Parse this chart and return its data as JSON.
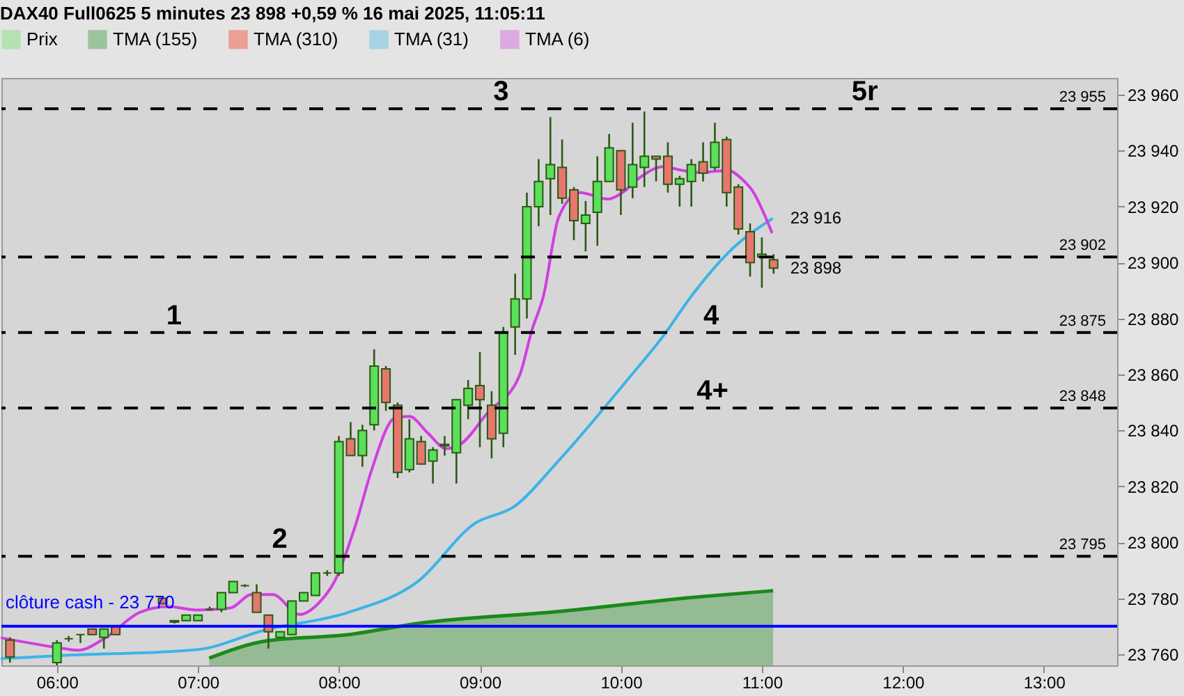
{
  "chart_data": {
    "type": "candlestick",
    "title": "DAX40 Full0625 5 minutes 23 898 +0,59 % 16 mai 2025, 11:05:11",
    "xlim": [
      5.606,
      13.52
    ],
    "ylim": [
      23756,
      23966
    ],
    "xticks": [
      {
        "value": 6,
        "label": "06:00"
      },
      {
        "value": 7,
        "label": "07:00"
      },
      {
        "value": 8,
        "label": "08:00"
      },
      {
        "value": 9,
        "label": "09:00"
      },
      {
        "value": 10,
        "label": "10:00"
      },
      {
        "value": 11,
        "label": "11:00"
      },
      {
        "value": 12,
        "label": "12:00"
      },
      {
        "value": 13,
        "label": "13:00"
      }
    ],
    "yticks": [
      {
        "value": 23760,
        "label": "23 760"
      },
      {
        "value": 23780,
        "label": "23 780"
      },
      {
        "value": 23800,
        "label": "23 800"
      },
      {
        "value": 23820,
        "label": "23 820"
      },
      {
        "value": 23840,
        "label": "23 840"
      },
      {
        "value": 23860,
        "label": "23 860"
      },
      {
        "value": 23880,
        "label": "23 880"
      },
      {
        "value": 23900,
        "label": "23 900"
      },
      {
        "value": 23920,
        "label": "23 920"
      },
      {
        "value": 23940,
        "label": "23 940"
      },
      {
        "value": 23960,
        "label": "23 960"
      }
    ],
    "legend": "top left",
    "series": [
      {
        "name": "Prix",
        "color": "#5ae05a",
        "x": [
          5.6667,
          6,
          6.0833,
          6.1667,
          6.25,
          6.3333,
          6.4167,
          6.75,
          6.8333,
          6.9167,
          7,
          7.0833,
          7.1667,
          7.25,
          7.3333,
          7.4167,
          7.5,
          7.5833,
          7.6667,
          7.75,
          7.8333,
          7.9167,
          8,
          8.0833,
          8.1667,
          8.25,
          8.3333,
          8.4167,
          8.5,
          8.5833,
          8.6667,
          8.75,
          8.8333,
          8.9167,
          9,
          9.0833,
          9.1667,
          9.25,
          9.3333,
          9.4167,
          9.5,
          9.5833,
          9.6667,
          9.75,
          9.8333,
          9.9167,
          10,
          10.0833,
          10.1667,
          10.25,
          10.3333,
          10.4167,
          10.5,
          10.5833,
          10.6667,
          10.75,
          10.8333,
          10.9167,
          11,
          11.0833
        ],
        "ohlc": [
          [
            23765,
            23766,
            23757,
            23759
          ],
          [
            23757,
            23765,
            23756,
            23764
          ],
          [
            23765.5,
            23766.5,
            23764.5,
            23765.5
          ],
          [
            23767,
            23767,
            23764,
            23767
          ],
          [
            23769,
            23769,
            23767,
            23767
          ],
          [
            23766,
            23769,
            23762,
            23769
          ],
          [
            23770,
            23770,
            23767,
            23767
          ],
          [
            23780,
            23780,
            23778,
            23778
          ],
          [
            23771.5,
            23772,
            23771,
            23772
          ],
          [
            23772,
            23774,
            23772,
            23774
          ],
          [
            23772,
            23774,
            23772,
            23774
          ],
          [
            23776,
            23777,
            23776,
            23776
          ],
          [
            23776,
            23782,
            23775,
            23782
          ],
          [
            23782,
            23786,
            23782,
            23786
          ],
          [
            23784.5,
            23785,
            23784,
            23784.5
          ],
          [
            23782,
            23785,
            23775,
            23775
          ],
          [
            23774,
            23774,
            23762,
            23768
          ],
          [
            23766,
            23768,
            23766,
            23768
          ],
          [
            23767,
            23779,
            23767,
            23779
          ],
          [
            23779,
            23782,
            23779,
            23782
          ],
          [
            23781,
            23789,
            23781,
            23789
          ],
          [
            23789,
            23790,
            23788,
            23789
          ],
          [
            23789,
            23838,
            23788,
            23836
          ],
          [
            23837,
            23843,
            23831,
            23831
          ],
          [
            23831,
            23842,
            23827,
            23840
          ],
          [
            23842,
            23869,
            23840,
            23863
          ],
          [
            23862,
            23863,
            23847,
            23850
          ],
          [
            23849,
            23850,
            23823,
            23825
          ],
          [
            23826,
            23844,
            23825,
            23837
          ],
          [
            23836,
            23838,
            23828,
            23828
          ],
          [
            23829,
            23834,
            23821,
            23833
          ],
          [
            23834.5,
            23838,
            23831,
            23835
          ],
          [
            23832,
            23851,
            23821,
            23851
          ],
          [
            23849,
            23858,
            23844,
            23855
          ],
          [
            23856,
            23868,
            23834,
            23851
          ],
          [
            23849,
            23854,
            23830,
            23837
          ],
          [
            23839,
            23877,
            23834,
            23875
          ],
          [
            23877,
            23896,
            23867,
            23887
          ],
          [
            23887,
            23925,
            23880,
            23920
          ],
          [
            23920,
            23937,
            23913,
            23929
          ],
          [
            23930,
            23952,
            23917,
            23935
          ],
          [
            23934,
            23944,
            23921,
            23923
          ],
          [
            23926,
            23927,
            23908,
            23915
          ],
          [
            23914,
            23922,
            23904,
            23917
          ],
          [
            23918,
            23938,
            23906,
            23929
          ],
          [
            23929,
            23946,
            23929,
            23941
          ],
          [
            23940,
            23940,
            23917,
            23926
          ],
          [
            23927,
            23950,
            23923,
            23935
          ],
          [
            23934,
            23954,
            23927,
            23938
          ],
          [
            23938,
            23938,
            23929,
            23937
          ],
          [
            23938,
            23943,
            23925,
            23928
          ],
          [
            23928,
            23931,
            23920,
            23930
          ],
          [
            23929,
            23937,
            23920,
            23935
          ],
          [
            23936,
            23943,
            23929,
            23932
          ],
          [
            23934,
            23950,
            23933,
            23943
          ],
          [
            23944,
            23945,
            23920,
            23925
          ],
          [
            23927,
            23928,
            23910,
            23912
          ],
          [
            23911,
            23914,
            23895,
            23900
          ],
          [
            23902,
            23909,
            23891,
            23903
          ],
          [
            23901,
            23903,
            23896,
            23898
          ]
        ],
        "colors": [
          "#e8766e",
          "#5ae05a",
          "#2b5a14",
          "#2b5a14",
          "#e8766e",
          "#5ae05a",
          "#e8766e",
          "#e8766e",
          "#5ae05a",
          "#5ae05a",
          "#5ae05a",
          "#2b5a14",
          "#5ae05a",
          "#5ae05a",
          "#2b5a14",
          "#e8766e",
          "#e8766e",
          "#5ae05a",
          "#5ae05a",
          "#5ae05a",
          "#5ae05a",
          "#2b5a14",
          "#5ae05a",
          "#e8766e",
          "#5ae05a",
          "#5ae05a",
          "#e8766e",
          "#e8766e",
          "#5ae05a",
          "#e8766e",
          "#5ae05a",
          "#5ae05a",
          "#5ae05a",
          "#5ae05a",
          "#e8766e",
          "#e8766e",
          "#5ae05a",
          "#5ae05a",
          "#5ae05a",
          "#5ae05a",
          "#5ae05a",
          "#e8766e",
          "#e8766e",
          "#5ae05a",
          "#5ae05a",
          "#5ae05a",
          "#e8766e",
          "#5ae05a",
          "#5ae05a",
          "#e8766e",
          "#e8766e",
          "#5ae05a",
          "#5ae05a",
          "#e8766e",
          "#5ae05a",
          "#e8766e",
          "#e8766e",
          "#e8766e",
          "#5ae05a",
          "#e8766e"
        ]
      },
      {
        "name": "TMA (155)",
        "type": "area",
        "color": "#1a8a1a",
        "x": [
          7.08,
          7.48,
          8.07,
          8.56,
          9.55,
          10.53,
          11.08
        ],
        "values": [
          23758.6,
          23764.7,
          23767,
          23771,
          23775.2,
          23780.4,
          23782.7
        ]
      },
      {
        "name": "TMA (310)",
        "type": "line",
        "color": "#ff2000"
      },
      {
        "name": "TMA (31)",
        "type": "line",
        "color": "#3cb4e6",
        "x": [
          5.61,
          6.03,
          6.99,
          7.48,
          8.07,
          8.56,
          8.96,
          9.25,
          9.55,
          10.07,
          10.3,
          10.5,
          10.8,
          11.07
        ],
        "values": [
          23758.4,
          23759.5,
          23761.6,
          23768.7,
          23775,
          23786,
          23806.6,
          23813,
          23828.7,
          23859.5,
          23873.7,
          23888,
          23905.4,
          23915.6
        ]
      },
      {
        "name": "TMA (6)",
        "type": "line",
        "color": "#d23ee0",
        "x": [
          5.61,
          6,
          6.15,
          6.34,
          6.59,
          6.79,
          6.99,
          7.23,
          7.38,
          7.53,
          7.72,
          7.87,
          7.97,
          8.12,
          8.23,
          8.4,
          8.5,
          8.63,
          8.76,
          8.86,
          9.05,
          9.28,
          9.37,
          9.45,
          9.56,
          9.71,
          9.91,
          10.01,
          10.14,
          10.3,
          10.43,
          10.56,
          10.76,
          10.86,
          10.93,
          11.07
        ],
        "values": [
          23765.8,
          23762.4,
          23761.4,
          23765.7,
          23775,
          23777,
          23775.8,
          23776.5,
          23781.3,
          23781.3,
          23774.2,
          23779,
          23786.1,
          23806.5,
          23825.5,
          23844.5,
          23845,
          23839.1,
          23833.5,
          23835,
          23846,
          23859.5,
          23876,
          23887.9,
          23916.4,
          23925,
          23922.7,
          23925,
          23930.6,
          23934.3,
          23933,
          23932.2,
          23933,
          23929.8,
          23925.9,
          23910.9
        ]
      }
    ],
    "ref_lines": [
      {
        "axis": "y",
        "value": 23955,
        "label": "23 955",
        "color": "#000000",
        "line_style": "dashed"
      },
      {
        "axis": "y",
        "value": 23902,
        "label": "23 902",
        "color": "#000000",
        "line_style": "dashed"
      },
      {
        "axis": "y",
        "value": 23875,
        "label": "23 875",
        "color": "#000000",
        "line_style": "dashed"
      },
      {
        "axis": "y",
        "value": 23848,
        "label": "23 848",
        "color": "#000000",
        "line_style": "dashed"
      },
      {
        "axis": "y",
        "value": 23795,
        "label": "23 795",
        "color": "#000000",
        "line_style": "dashed"
      },
      {
        "axis": "y",
        "value": 23770,
        "label": "clôture cash -  23 770",
        "color": "#0000ff",
        "line_style": "solid"
      }
    ],
    "annotations": [
      {
        "text": "1",
        "x": 6.83,
        "y": 23875
      },
      {
        "text": "2",
        "x": 7.58,
        "y": 23795
      },
      {
        "text": "3",
        "x": 9.15,
        "y": 23955
      },
      {
        "text": "4",
        "x": 10.64,
        "y": 23875
      },
      {
        "text": "4+",
        "x": 10.65,
        "y": 23848
      },
      {
        "text": "5r",
        "x": 11.73,
        "y": 23955
      },
      {
        "text": "23 916",
        "x": 11.0833,
        "y": 23916
      },
      {
        "text": "23 898",
        "x": 11.0833,
        "y": 23898
      }
    ]
  }
}
